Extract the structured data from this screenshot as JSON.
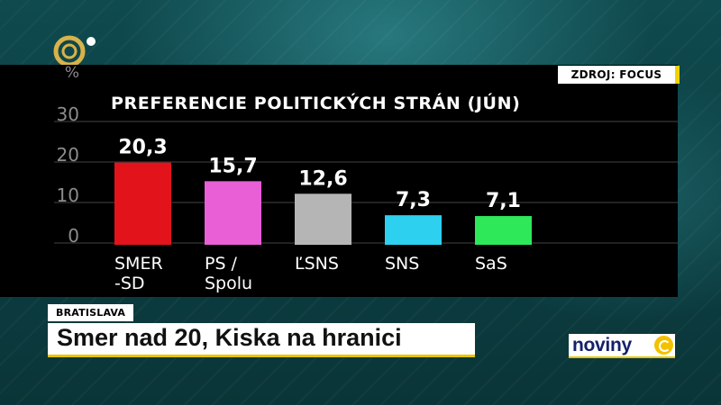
{
  "source": "ZDROJ: FOCUS",
  "location": "BRATISLAVA",
  "headline": "Smer nad 20, Kiska na hranici",
  "brand": "noviny",
  "chart_data": {
    "type": "bar",
    "title": "PREFERENCIE POLITICKÝCH STRÁN (JÚN)",
    "ylabel": "%",
    "yticks": [
      0,
      10,
      20,
      30
    ],
    "ylim": [
      0,
      35
    ],
    "grid": true,
    "categories": [
      [
        "SMER",
        "-SD"
      ],
      [
        "PS /",
        "Spolu"
      ],
      [
        "ĽSNS"
      ],
      [
        "SNS"
      ],
      [
        "SaS"
      ]
    ],
    "values": [
      20.3,
      15.7,
      12.6,
      7.3,
      7.1
    ],
    "value_labels": [
      "20,3",
      "15,7",
      "12,6",
      "7,3",
      "7,1"
    ],
    "colors": [
      "#e3131c",
      "#e85fd6",
      "#b5b5b5",
      "#2ed0f0",
      "#2ee85a"
    ]
  }
}
